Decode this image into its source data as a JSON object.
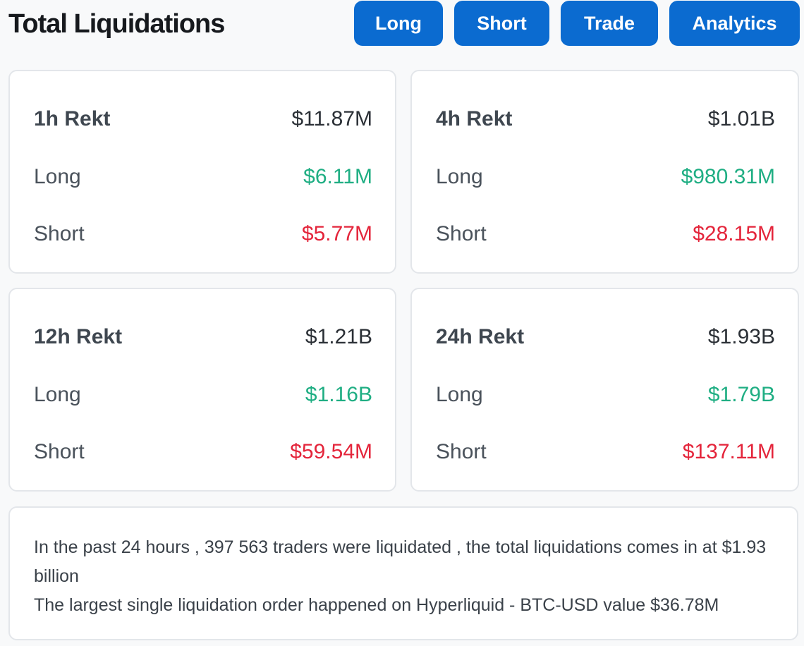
{
  "header": {
    "title": "Total Liquidations",
    "tabs": [
      {
        "label": "Long"
      },
      {
        "label": "Short"
      },
      {
        "label": "Trade"
      },
      {
        "label": "Analytics"
      }
    ]
  },
  "cards": [
    {
      "title": "1h Rekt",
      "total": "$11.87M",
      "long_label": "Long",
      "long": "$6.11M",
      "short_label": "Short",
      "short": "$5.77M"
    },
    {
      "title": "4h Rekt",
      "total": "$1.01B",
      "long_label": "Long",
      "long": "$980.31M",
      "short_label": "Short",
      "short": "$28.15M"
    },
    {
      "title": "12h Rekt",
      "total": "$1.21B",
      "long_label": "Long",
      "long": "$1.16B",
      "short_label": "Short",
      "short": "$59.54M"
    },
    {
      "title": "24h Rekt",
      "total": "$1.93B",
      "long_label": "Long",
      "long": "$1.79B",
      "short_label": "Short",
      "short": "$137.11M"
    }
  ],
  "summary": {
    "line1": "In the past 24 hours , 397 563 traders were liquidated , the total liquidations comes in at $1.93 billion",
    "line2": "The largest single liquidation order happened on Hyperliquid - BTC-USD value $36.78M"
  },
  "colors": {
    "accent": "#0b6bd0",
    "long": "#1fae83",
    "short": "#e4253b"
  }
}
